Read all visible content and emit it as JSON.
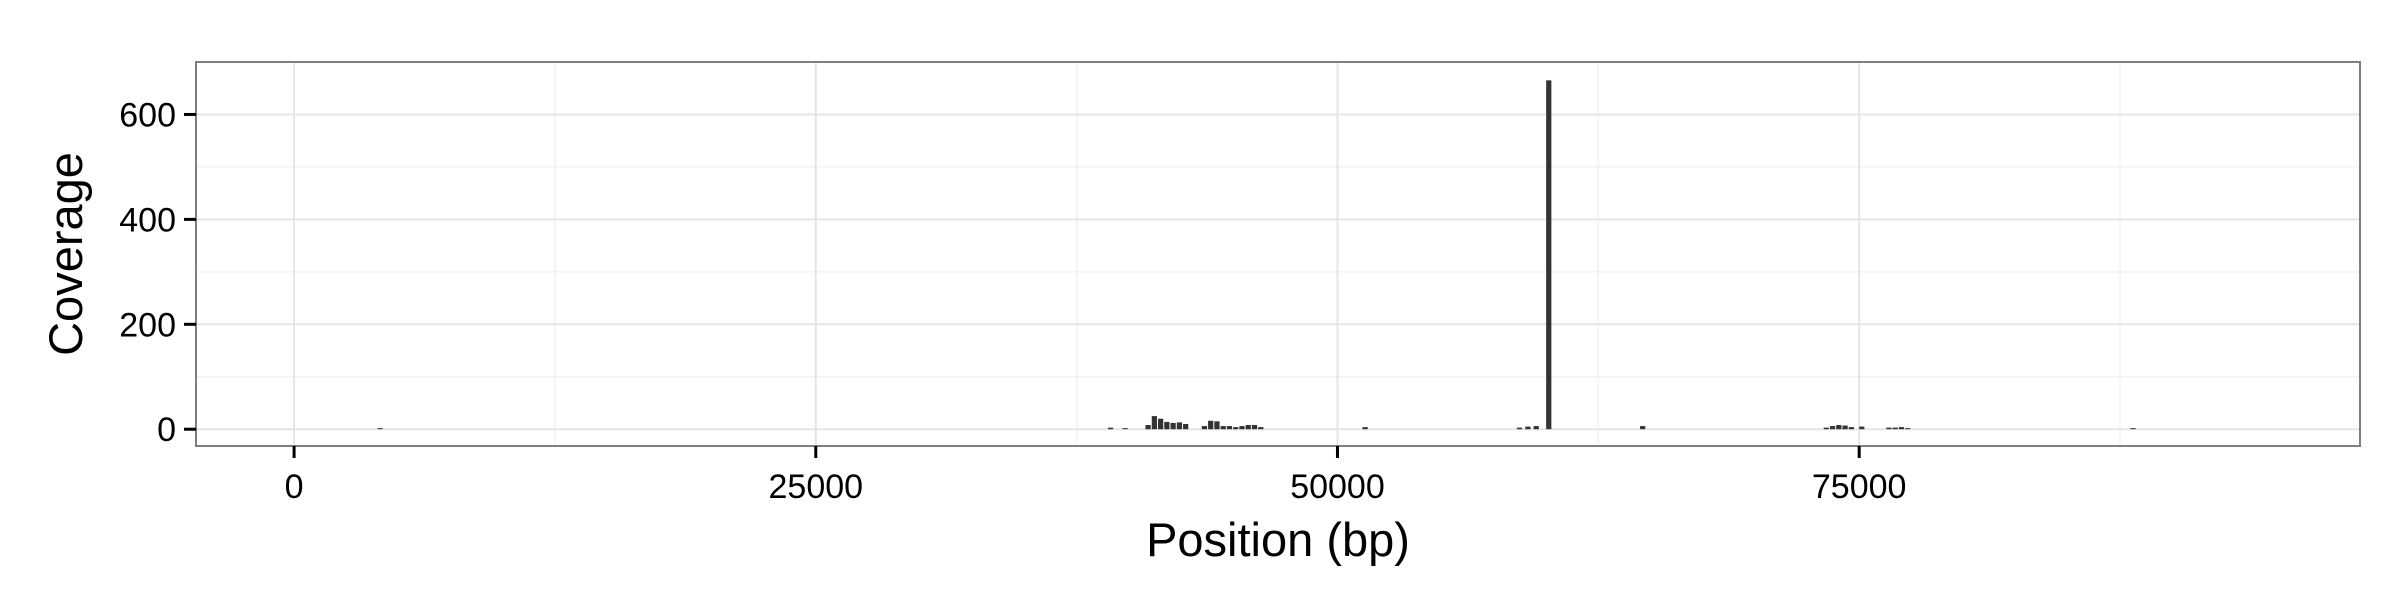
{
  "chart_data": {
    "type": "bar",
    "title": "",
    "xlabel": "Position (bp)",
    "ylabel": "Coverage",
    "xlim": [
      -4700,
      99000
    ],
    "ylim": [
      -32,
      700
    ],
    "x_ticks": [
      0,
      25000,
      50000,
      75000
    ],
    "x_tick_labels": [
      "0",
      "25000",
      "50000",
      "75000"
    ],
    "y_ticks": [
      0,
      200,
      400,
      600
    ],
    "y_tick_labels": [
      "0",
      "200",
      "400",
      "600"
    ],
    "grid": true,
    "bin_width": 250,
    "bar_color": "#333333",
    "x": [
      4000,
      39000,
      39700,
      40800,
      41100,
      41400,
      41700,
      42000,
      42300,
      42600,
      43500,
      43800,
      44100,
      44400,
      44700,
      45000,
      45300,
      45600,
      45900,
      46200,
      51200,
      58600,
      59000,
      59400,
      60000,
      64500,
      73300,
      73600,
      73900,
      74200,
      74500,
      75000,
      76300,
      76600,
      76900,
      77200,
      88000
    ],
    "values": [
      2,
      3,
      2,
      8,
      25,
      20,
      14,
      12,
      13,
      10,
      6,
      16,
      15,
      6,
      6,
      4,
      6,
      8,
      8,
      4,
      4,
      3,
      5,
      6,
      665,
      6,
      3,
      6,
      8,
      7,
      4,
      5,
      3,
      3,
      4,
      2,
      2
    ]
  }
}
